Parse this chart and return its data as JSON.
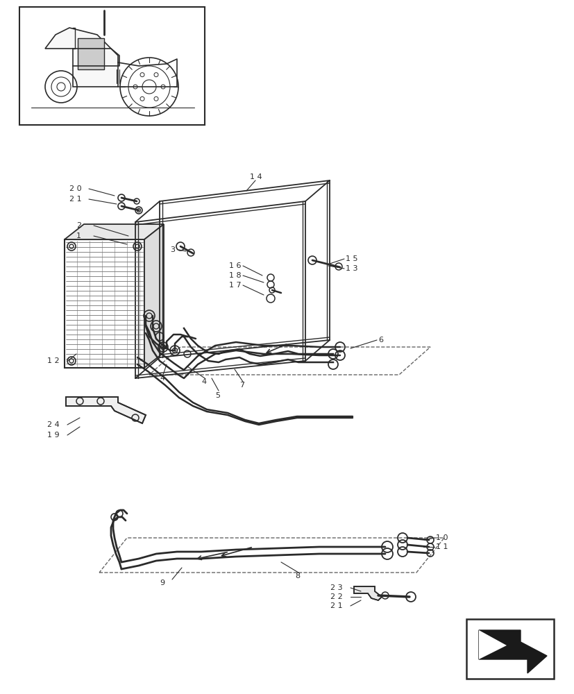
{
  "bg_color": "#ffffff",
  "line_color": "#2a2a2a",
  "fig_width": 8.28,
  "fig_height": 10.0,
  "dpi": 100
}
